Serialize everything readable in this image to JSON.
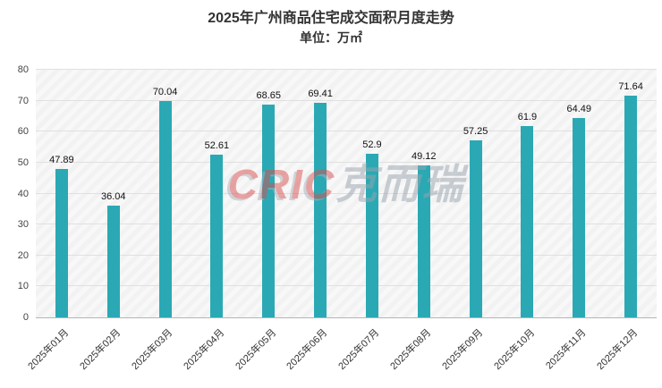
{
  "chart_data": {
    "type": "bar",
    "title": "2025年广州商品住宅成交面积月度走势",
    "subtitle": "单位：万㎡",
    "categories": [
      "2025年01月",
      "2025年02月",
      "2025年03月",
      "2025年04月",
      "2025年05月",
      "2025年06月",
      "2025年07月",
      "2025年08月",
      "2025年09月",
      "2025年10月",
      "2025年11月",
      "2025年12月"
    ],
    "values": [
      47.89,
      36.04,
      70.04,
      52.61,
      68.65,
      69.41,
      52.9,
      49.12,
      57.25,
      61.9,
      64.49,
      71.64
    ],
    "xlabel": "",
    "ylabel": "",
    "ylim": [
      0,
      80
    ],
    "yticks": [
      0,
      10,
      20,
      30,
      40,
      50,
      60,
      70,
      80
    ],
    "grid": true,
    "legend_position": "none",
    "bar_color": "#2aa9b4"
  },
  "watermark": {
    "latin": "CRIC",
    "cjk": "克而瑞"
  }
}
